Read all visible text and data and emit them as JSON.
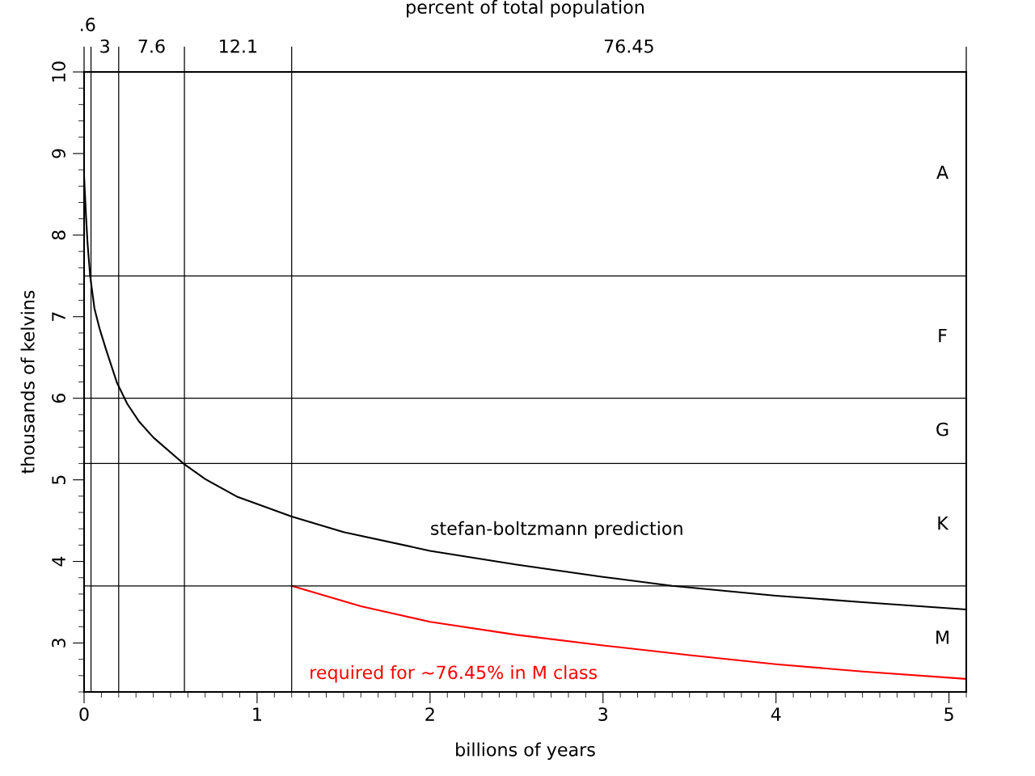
{
  "chart_data": {
    "type": "line",
    "title": "percent of total population",
    "xlabel": "billions of years",
    "ylabel": "thousands of kelvins",
    "xlim": [
      0,
      5.1
    ],
    "xticks": [
      0,
      1,
      2,
      3,
      4,
      5
    ],
    "ylim": [
      2.4,
      10
    ],
    "yticks": [
      3,
      4,
      5,
      6,
      7,
      8,
      9,
      10
    ],
    "legend": false,
    "series": [
      {
        "color": "#000000",
        "x": [
          0,
          0.005,
          0.011,
          0.02,
          0.035,
          0.06,
          0.09,
          0.125,
          0.19,
          0.25,
          0.316,
          0.4,
          0.58,
          0.7,
          0.888,
          1.2,
          1.5,
          2,
          2.5,
          3,
          3.4,
          4,
          4.5,
          5.1
        ],
        "values": [
          8.72,
          8.5,
          8.24,
          7.9,
          7.5,
          7.1,
          6.85,
          6.61,
          6.19,
          5.93,
          5.72,
          5.52,
          5.19,
          5.01,
          4.79,
          4.55,
          4.36,
          4.13,
          3.96,
          3.81,
          3.7,
          3.58,
          3.5,
          3.41
        ]
      },
      {
        "color": "#ff0000",
        "x": [
          1.2,
          1.6,
          2,
          2.5,
          3,
          3.5,
          4,
          4.5,
          5.1
        ],
        "values": [
          3.7,
          3.45,
          3.26,
          3.1,
          2.97,
          2.85,
          2.74,
          2.65,
          2.56
        ]
      }
    ],
    "ref_lines": [
      {
        "axis": "x",
        "value": 0.04
      },
      {
        "axis": "x",
        "value": 0.2
      },
      {
        "axis": "x",
        "value": 0.58
      },
      {
        "axis": "x",
        "value": 1.2
      },
      {
        "axis": "y",
        "value": 7.5
      },
      {
        "axis": "y",
        "value": 6
      },
      {
        "axis": "y",
        "value": 5.2
      },
      {
        "axis": "y",
        "value": 3.7
      }
    ],
    "annotations": [
      ".6",
      "3",
      "7.6",
      "12.1",
      "76.45",
      "A",
      "F",
      "G",
      "K",
      "M",
      {
        "text": "stefan-boltzmann prediction",
        "x": 2,
        "y": 4.13
      },
      "required for ~76.45% in M class"
    ]
  }
}
